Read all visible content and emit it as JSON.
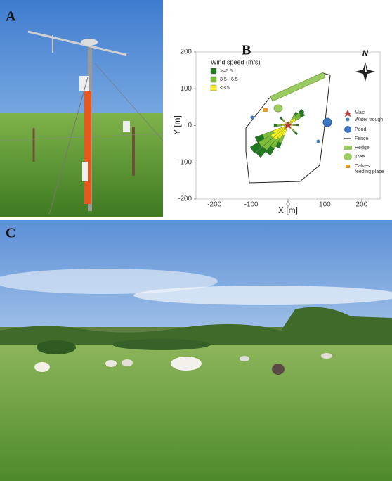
{
  "panel_labels": [
    "A",
    "B",
    "C"
  ],
  "chart_data": {
    "type": "map",
    "xlabel": "X [m]",
    "ylabel": "Y [m]",
    "xlim": [
      -250,
      250
    ],
    "ylim": [
      -200,
      200
    ],
    "xticks": [
      -200,
      -100,
      0,
      100,
      200
    ],
    "yticks": [
      -200,
      -100,
      0,
      100,
      200
    ],
    "legend": {
      "title": "Wind speed (m/s)",
      "items": [
        {
          "name": ">=6.5",
          "color": "#1f7a1f"
        },
        {
          "name": "3.5 - 6.5",
          "color": "#7cbd3a"
        },
        {
          "name": "<3.5",
          "color": "#f5f020"
        }
      ]
    },
    "map_legend": [
      "Mast",
      "Water trough",
      "Pond",
      "Fence",
      "Hedge",
      "Tree",
      "Calves feeding place"
    ],
    "compass": "N"
  }
}
